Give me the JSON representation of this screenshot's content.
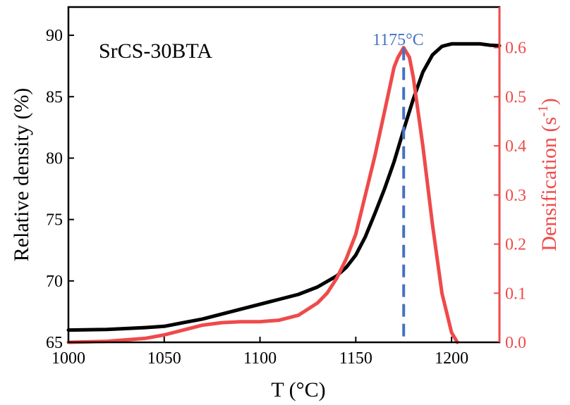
{
  "chart_data": {
    "type": "line",
    "title": "",
    "annotations": {
      "sample_label": "SrCS-30BTA",
      "peak_label": "1175°C",
      "peak_x": 1175
    },
    "x_axis": {
      "label": "T (°C)",
      "range": [
        1000,
        1225
      ],
      "ticks": [
        1000,
        1050,
        1100,
        1150,
        1200
      ],
      "tick_labels": [
        "1000",
        "1050",
        "1100",
        "1150",
        "1200"
      ]
    },
    "y_axis_left": {
      "label": "Relative density (%)",
      "range": [
        65,
        92.3
      ],
      "ticks": [
        65,
        70,
        75,
        80,
        85,
        90
      ],
      "tick_labels": [
        "65",
        "70",
        "75",
        "80",
        "85",
        "90"
      ]
    },
    "y_axis_right": {
      "label_main": "Densification (s",
      "label_sup": "-1",
      "label_end": ")",
      "range": [
        0,
        0.6826
      ],
      "ticks": [
        0,
        0.1,
        0.2,
        0.3,
        0.4,
        0.5,
        0.6
      ],
      "tick_labels": [
        "0.0",
        "0.1",
        "0.2",
        "0.3",
        "0.4",
        "0.5",
        "0.6"
      ]
    },
    "series": [
      {
        "axis": "left",
        "color": "#000000",
        "x": [
          1000,
          1020,
          1040,
          1050,
          1060,
          1070,
          1080,
          1090,
          1100,
          1110,
          1120,
          1130,
          1140,
          1145,
          1150,
          1155,
          1160,
          1165,
          1170,
          1175,
          1180,
          1185,
          1190,
          1195,
          1200,
          1205,
          1210,
          1215,
          1220,
          1225
        ],
        "y": [
          66.0,
          66.05,
          66.2,
          66.3,
          66.6,
          66.9,
          67.3,
          67.7,
          68.1,
          68.5,
          68.9,
          69.5,
          70.4,
          71.1,
          72.1,
          73.6,
          75.5,
          77.5,
          79.7,
          82.3,
          84.8,
          87.0,
          88.4,
          89.1,
          89.3,
          89.3,
          89.3,
          89.3,
          89.2,
          89.15
        ]
      },
      {
        "axis": "right",
        "color": "#ef4a4a",
        "x": [
          1000,
          1020,
          1040,
          1050,
          1060,
          1070,
          1080,
          1090,
          1100,
          1110,
          1120,
          1130,
          1135,
          1140,
          1145,
          1150,
          1155,
          1160,
          1165,
          1170,
          1172,
          1175,
          1178,
          1180,
          1185,
          1190,
          1195,
          1200,
          1203
        ],
        "y": [
          0.0,
          0.002,
          0.008,
          0.015,
          0.025,
          0.035,
          0.04,
          0.042,
          0.042,
          0.045,
          0.055,
          0.08,
          0.1,
          0.13,
          0.17,
          0.22,
          0.3,
          0.38,
          0.47,
          0.56,
          0.58,
          0.6,
          0.58,
          0.54,
          0.4,
          0.24,
          0.1,
          0.02,
          0.0
        ]
      }
    ],
    "marker_line": {
      "color": "#4472c4"
    },
    "colors": {
      "left_axis": "#000000",
      "right_axis": "#ef4a4a",
      "peak": "#4472c4"
    }
  }
}
